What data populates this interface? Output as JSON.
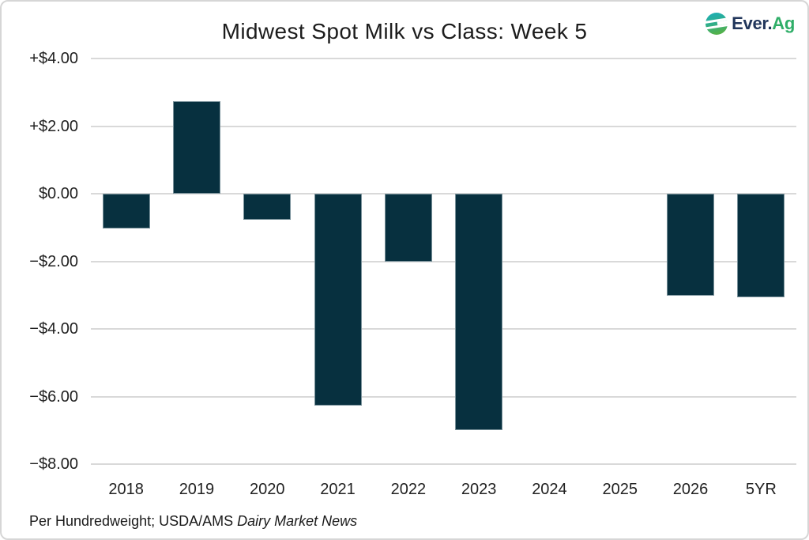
{
  "card": {
    "title": "Midwest Spot Milk vs Class: Week 5",
    "footer": {
      "prefix": "Per Hundredweight; USDA/AMS ",
      "source": "Dairy Market News"
    },
    "logo": {
      "text_primary": "Ever.",
      "text_secondary": "Ag"
    }
  },
  "colors": {
    "bar": "#07303f",
    "gridline": "#d9d9d9",
    "axis_text": "#212121",
    "logo_navy": "#21365b",
    "logo_green": "#2fae68",
    "logo_mark_teal": "#1aaebb",
    "logo_mark_green": "#53b14b"
  },
  "chart_data": {
    "type": "bar",
    "title": "Midwest Spot Milk vs Class: Week 5",
    "categories": [
      "2018",
      "2019",
      "2020",
      "2021",
      "2022",
      "2023",
      "2024",
      "2025",
      "2026",
      "5YR"
    ],
    "values": [
      -1.02,
      2.73,
      -0.77,
      -6.28,
      -2.0,
      -7.0,
      0,
      0,
      -3.02,
      -3.07
    ],
    "xlabel": "",
    "ylabel": "",
    "ylim": [
      -8,
      4
    ],
    "ytick_step": 2,
    "ytick_labels": [
      "+$4.00",
      "+$2.00",
      "$0.00",
      "−$2.00",
      "−$4.00",
      "−$6.00",
      "−$8.00"
    ],
    "grid": true,
    "legend": false,
    "annotation": "Per Hundredweight; USDA/AMS Dairy Market News"
  }
}
